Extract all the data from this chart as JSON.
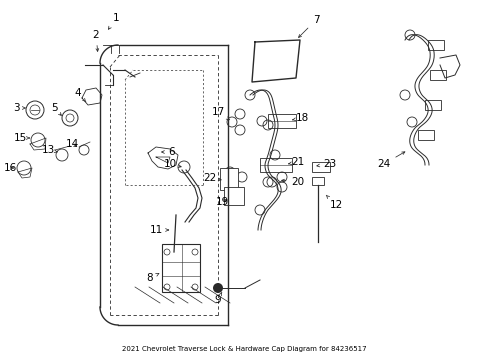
{
  "title": "2021 Chevrolet Traverse Lock & Hardware Cap Diagram for 84236517",
  "background_color": "#ffffff",
  "line_color": "#2a2a2a",
  "text_color": "#000000",
  "fig_width": 4.89,
  "fig_height": 3.6,
  "dpi": 100
}
